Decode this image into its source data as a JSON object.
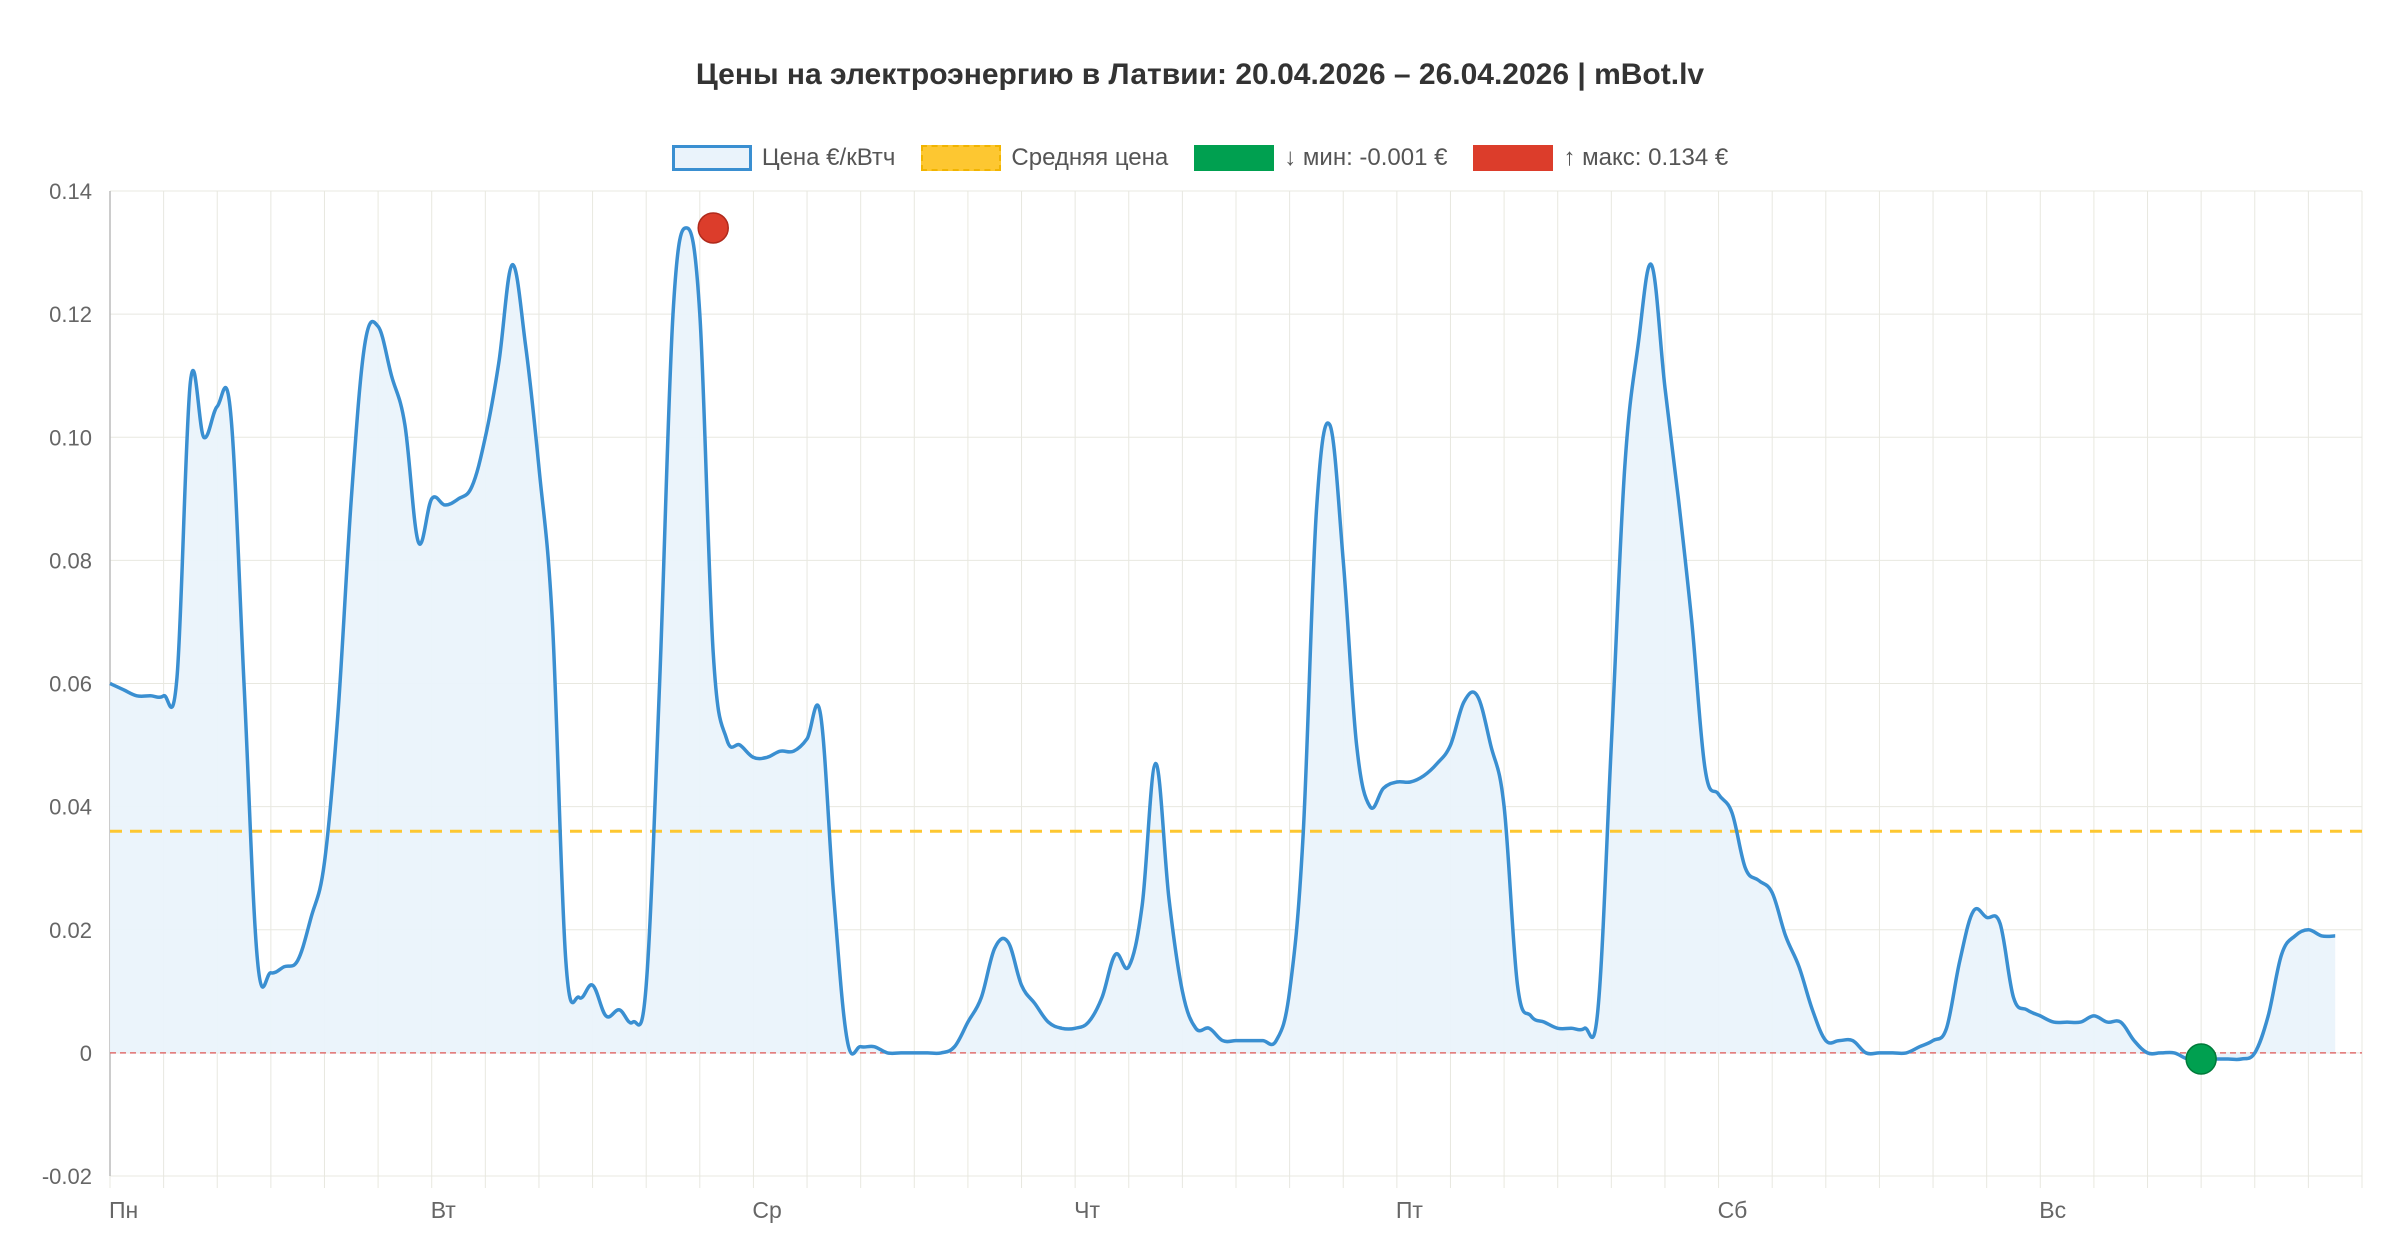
{
  "chart_data": {
    "type": "area",
    "title": "Цены на электроэнергию в Латвии: 20.04.2026 – 26.04.2026 | mBot.lv",
    "xlabel": "",
    "ylabel": "",
    "ylim": [
      -0.02,
      0.14
    ],
    "y_ticks": [
      -0.02,
      0,
      0.02,
      0.04,
      0.06,
      0.08,
      0.1,
      0.12,
      0.14
    ],
    "y_tick_labels": [
      "-0.02",
      "0",
      "0.02",
      "0.04",
      "0.06",
      "0.08",
      "0.10",
      "0.12",
      "0.14"
    ],
    "x_day_labels": [
      "Пн",
      "Вт",
      "Ср",
      "Чт",
      "Пт",
      "Сб",
      "Вс"
    ],
    "grid": true,
    "legend_position": "top-center",
    "legend": {
      "price": "Цена €/кВтч",
      "average": "Средняя цена",
      "min": "↓ мин: -0.001 €",
      "max": "↑ макс: 0.134 €"
    },
    "colors": {
      "price_line": "#3a8fd1",
      "price_fill": "#eaf3fb",
      "average": "#fdc731",
      "min": "#00a050",
      "max": "#dc3d2b",
      "zero_line": "#e07070",
      "grid": "#e8e8e0"
    },
    "average_price": 0.036,
    "min_point": {
      "hour": 156,
      "value": -0.001
    },
    "max_point": {
      "hour": 45,
      "value": 0.134
    },
    "series": [
      {
        "name": "Цена €/кВтч",
        "values": [
          0.06,
          0.059,
          0.058,
          0.058,
          0.058,
          0.061,
          0.109,
          0.1,
          0.105,
          0.104,
          0.06,
          0.015,
          0.013,
          0.014,
          0.015,
          0.022,
          0.031,
          0.055,
          0.09,
          0.115,
          0.118,
          0.11,
          0.102,
          0.083,
          0.09,
          0.089,
          0.09,
          0.092,
          0.1,
          0.112,
          0.128,
          0.115,
          0.095,
          0.07,
          0.015,
          0.009,
          0.011,
          0.006,
          0.007,
          0.005,
          0.011,
          0.06,
          0.12,
          0.134,
          0.12,
          0.065,
          0.051,
          0.05,
          0.048,
          0.048,
          0.049,
          0.049,
          0.051,
          0.055,
          0.025,
          0.002,
          0.001,
          0.001,
          0.0,
          0.0,
          0.0,
          0.0,
          0.0,
          0.001,
          0.005,
          0.009,
          0.017,
          0.018,
          0.011,
          0.008,
          0.005,
          0.004,
          0.004,
          0.005,
          0.009,
          0.016,
          0.014,
          0.024,
          0.047,
          0.025,
          0.01,
          0.004,
          0.004,
          0.002,
          0.002,
          0.002,
          0.002,
          0.002,
          0.01,
          0.035,
          0.088,
          0.102,
          0.08,
          0.05,
          0.04,
          0.043,
          0.044,
          0.044,
          0.045,
          0.047,
          0.05,
          0.057,
          0.058,
          0.05,
          0.04,
          0.011,
          0.006,
          0.005,
          0.004,
          0.004,
          0.004,
          0.007,
          0.05,
          0.095,
          0.115,
          0.128,
          0.108,
          0.09,
          0.07,
          0.046,
          0.042,
          0.039,
          0.03,
          0.028,
          0.026,
          0.019,
          0.014,
          0.007,
          0.002,
          0.002,
          0.002,
          0.0,
          0.0,
          0.0,
          0.0,
          0.001,
          0.002,
          0.004,
          0.015,
          0.023,
          0.022,
          0.021,
          0.009,
          0.007,
          0.006,
          0.005,
          0.005,
          0.005,
          0.006,
          0.005,
          0.005,
          0.002,
          0.0,
          0.0,
          0.0,
          -0.001,
          -0.001,
          -0.001,
          -0.001,
          -0.001,
          0.0,
          0.006,
          0.016,
          0.019,
          0.02,
          0.019,
          0.019
        ]
      }
    ]
  }
}
